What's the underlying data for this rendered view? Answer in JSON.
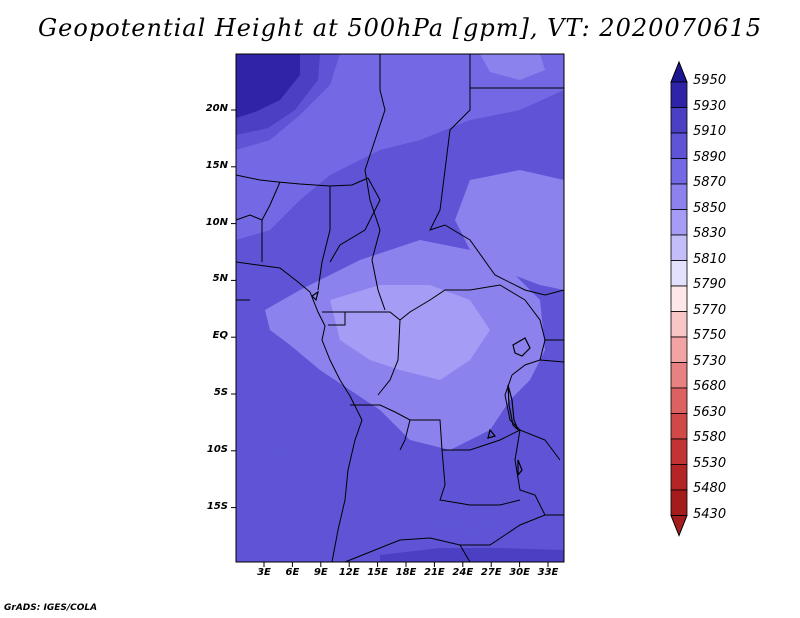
{
  "title": "Geopotential Height at 500hPa [gpm], VT: 2020070615",
  "footer": "GrADS: IGES/COLA",
  "map": {
    "lat_labels": [
      "20N",
      "15N",
      "10N",
      "5N",
      "EQ",
      "5S",
      "10S",
      "15S"
    ],
    "lon_labels": [
      "3E",
      "6E",
      "9E",
      "12E",
      "15E",
      "18E",
      "21E",
      "24E",
      "27E",
      "30E",
      "33E"
    ],
    "field_colors": {
      "c5910": "#2f24a8",
      "c5890": "#4b3fc4",
      "c5870": "#5f54d6",
      "c5850": "#7469e4",
      "c5830": "#8c82ee",
      "c5810": "#a49cf5"
    }
  },
  "colorbar": {
    "labels": [
      "5950",
      "5930",
      "5910",
      "5890",
      "5870",
      "5850",
      "5830",
      "5810",
      "5790",
      "5770",
      "5750",
      "5730",
      "5680",
      "5630",
      "5580",
      "5530",
      "5480",
      "5430"
    ],
    "colors": [
      "#1c1691",
      "#2f24a8",
      "#4b3fc4",
      "#5f54d6",
      "#7469e4",
      "#8c82ee",
      "#a49cf5",
      "#c3bdfa",
      "#e4e1fd",
      "#fde7e7",
      "#f9c6c6",
      "#f2a4a4",
      "#e88282",
      "#dc6262",
      "#d04848",
      "#c23434",
      "#b42626",
      "#a41c1c"
    ]
  }
}
